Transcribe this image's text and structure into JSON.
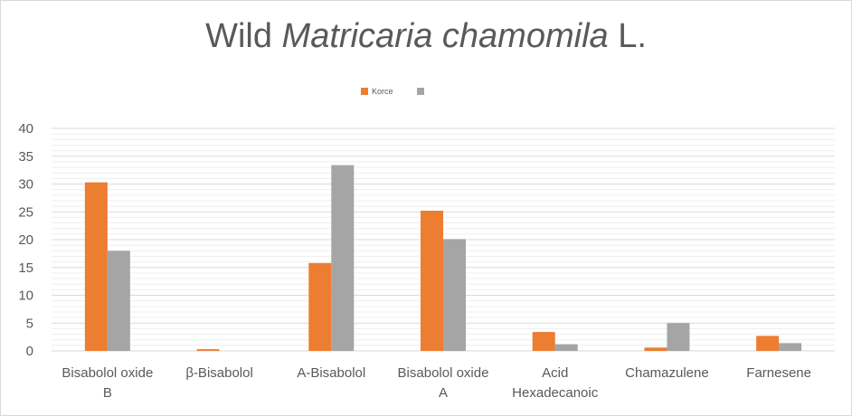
{
  "chart_data": {
    "type": "bar",
    "title_prefix": "Wild ",
    "title_italic": "Matricaria chamomila",
    "title_suffix": " L.",
    "categories": [
      [
        "Bisabolol oxide",
        "B"
      ],
      [
        "β-Bisabolol"
      ],
      [
        "A-Bisabolol"
      ],
      [
        "Bisabolol oxide",
        "A"
      ],
      [
        "Acid",
        "Hexadecanoic"
      ],
      [
        "Chamazulene"
      ],
      [
        "Farnesene"
      ]
    ],
    "series": [
      {
        "name": "Korce",
        "color": "#ed7d31",
        "values": [
          30.3,
          0.3,
          15.8,
          25.2,
          3.4,
          0.6,
          2.7
        ]
      },
      {
        "name": "",
        "color": "#a5a5a5",
        "values": [
          18.0,
          0.0,
          33.4,
          20.1,
          1.2,
          5.0,
          1.4
        ]
      }
    ],
    "ylim": [
      0,
      40
    ],
    "yticks": [
      0,
      5,
      10,
      15,
      20,
      25,
      30,
      35,
      40
    ],
    "grid": true,
    "legend_position": "top"
  }
}
